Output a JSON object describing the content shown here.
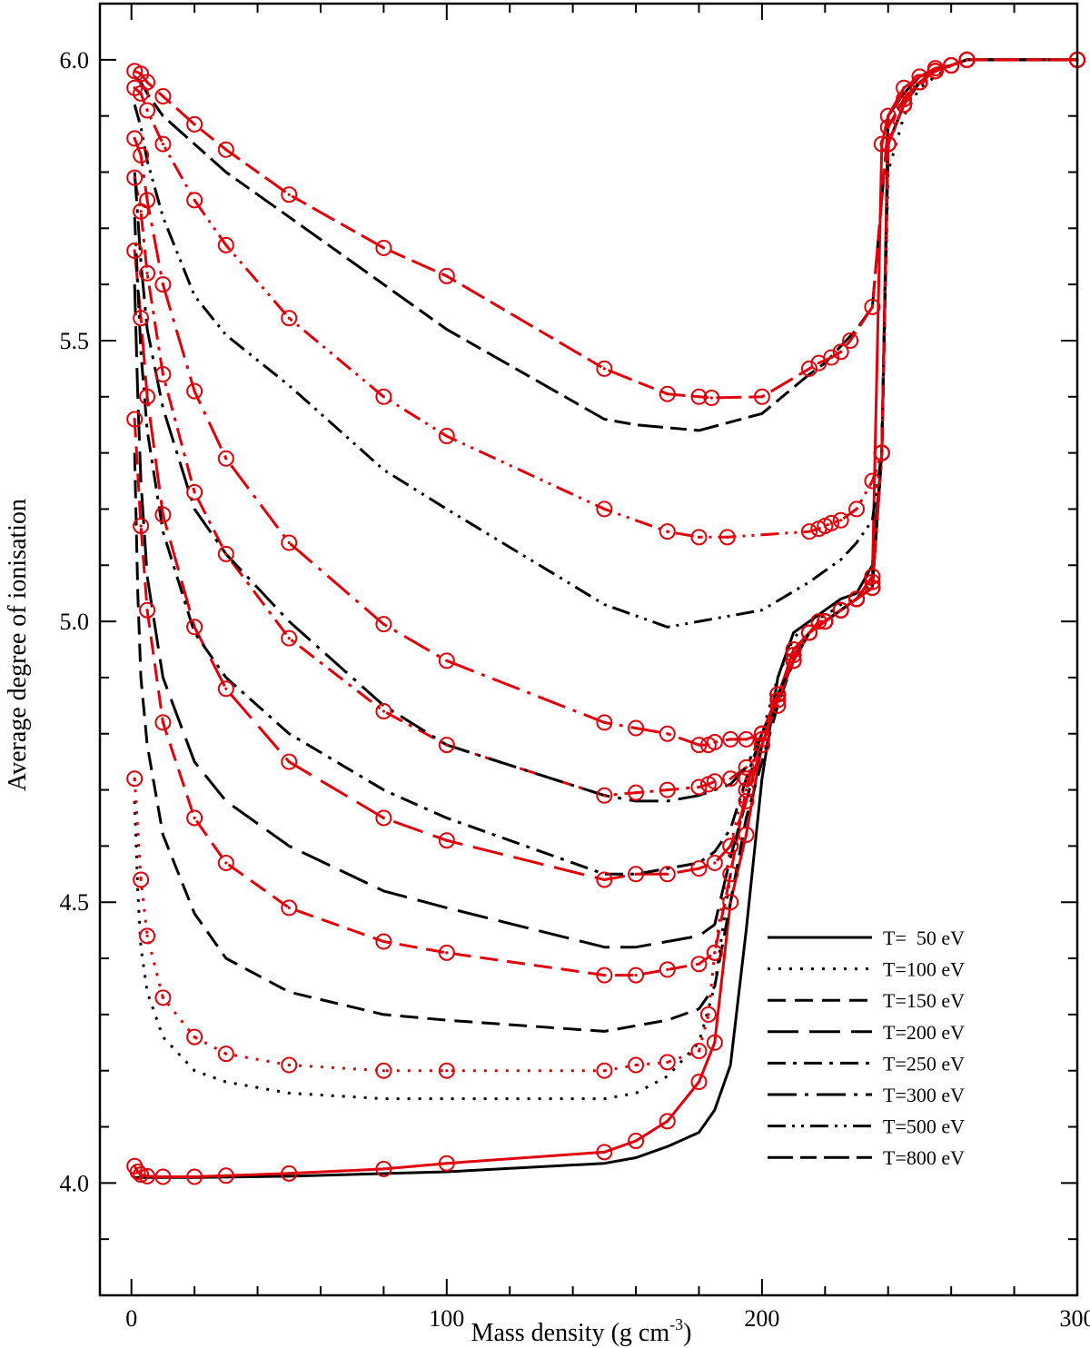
{
  "chart_data": {
    "type": "line",
    "title": "",
    "xlabel": "Mass density (g cm",
    "xlabel_sup": "-3",
    "xlabel_close": ")",
    "ylabel": "Average degree of ionisation",
    "xlim": [
      -10,
      300
    ],
    "ylim": [
      3.8,
      6.1
    ],
    "x_ticks": [
      0,
      100,
      200,
      300
    ],
    "x_tick_labels": [
      "0",
      "100",
      "200",
      "300"
    ],
    "x_minor_step": 20,
    "y_ticks": [
      4.0,
      4.5,
      5.0,
      5.5,
      6.0
    ],
    "y_tick_labels": [
      "4.0",
      "4.5",
      "5.0",
      "5.5",
      "6.0"
    ],
    "y_minor_step": 0.1,
    "legend_position": "bottom-right",
    "colors": {
      "model": "#000000",
      "reference": "#e0000b"
    },
    "legend": [
      {
        "label": "T=  50 eV",
        "style": "solid"
      },
      {
        "label": "T=100 eV",
        "style": "dotted"
      },
      {
        "label": "T=150 eV",
        "style": "dashed"
      },
      {
        "label": "T=200 eV",
        "style": "longdash"
      },
      {
        "label": "T=250 eV",
        "style": "dashdot"
      },
      {
        "label": "T=300 eV",
        "style": "longdashdot"
      },
      {
        "label": "T=500 eV",
        "style": "dashdotdot"
      },
      {
        "label": "T=800 eV",
        "style": "longdashdot2"
      }
    ],
    "series": [
      {
        "name": "T=50 eV",
        "color": "black",
        "style": "solid",
        "x": [
          1,
          3,
          5,
          10,
          20,
          50,
          100,
          150,
          160,
          170,
          180,
          185,
          190,
          195,
          200,
          205,
          210,
          215,
          220,
          225,
          230,
          235,
          238,
          240,
          245,
          250,
          255,
          260,
          265,
          300
        ],
        "y": [
          4.01,
          4.01,
          4.01,
          4.01,
          4.01,
          4.012,
          4.02,
          4.035,
          4.045,
          4.065,
          4.09,
          4.13,
          4.21,
          4.45,
          4.72,
          4.9,
          4.98,
          5.0,
          5.02,
          5.04,
          5.05,
          5.1,
          5.3,
          5.9,
          5.94,
          5.97,
          5.98,
          5.99,
          6.0,
          6.0
        ]
      },
      {
        "name": "T=50 eV",
        "color": "red",
        "style": "solid",
        "markers": true,
        "x": [
          1,
          2,
          3,
          5,
          10,
          20,
          30,
          50,
          80,
          100,
          150,
          160,
          170,
          180,
          185,
          190,
          195,
          200,
          210,
          215,
          218,
          220,
          225,
          230,
          235,
          238,
          240,
          245,
          250,
          255,
          260,
          265,
          300
        ],
        "y": [
          4.03,
          4.02,
          4.015,
          4.012,
          4.011,
          4.011,
          4.013,
          4.017,
          4.025,
          4.035,
          4.055,
          4.075,
          4.11,
          4.18,
          4.25,
          4.5,
          4.62,
          4.78,
          4.95,
          4.98,
          5.0,
          5.0,
          5.02,
          5.04,
          5.08,
          5.85,
          5.9,
          5.95,
          5.97,
          5.985,
          5.99,
          6.0,
          6.0
        ]
      },
      {
        "name": "T=100 eV",
        "color": "black",
        "style": "dotted",
        "x": [
          1,
          2,
          3,
          5,
          10,
          20,
          30,
          50,
          80,
          100,
          150,
          160,
          170,
          180,
          185,
          190,
          195,
          200,
          205,
          210,
          215,
          220,
          225,
          230,
          235,
          238,
          240,
          245,
          250,
          255,
          260,
          265,
          300
        ],
        "y": [
          4.68,
          4.52,
          4.42,
          4.34,
          4.26,
          4.2,
          4.18,
          4.16,
          4.15,
          4.15,
          4.15,
          4.16,
          4.19,
          4.25,
          4.35,
          4.55,
          4.7,
          4.8,
          4.9,
          4.97,
          5.0,
          5.01,
          5.03,
          5.04,
          5.07,
          5.3,
          5.8,
          5.9,
          5.95,
          5.97,
          5.99,
          6.0,
          6.0
        ]
      },
      {
        "name": "T=100 eV",
        "color": "red",
        "style": "dotted",
        "markers": true,
        "x": [
          1,
          3,
          5,
          10,
          20,
          30,
          50,
          80,
          100,
          150,
          160,
          170,
          180,
          183,
          185,
          190,
          195,
          200,
          205,
          210,
          215,
          220,
          225,
          230,
          235,
          238,
          240,
          245,
          250,
          255,
          260,
          265,
          300
        ],
        "y": [
          4.72,
          4.54,
          4.44,
          4.33,
          4.26,
          4.23,
          4.21,
          4.2,
          4.2,
          4.2,
          4.21,
          4.215,
          4.235,
          4.3,
          4.41,
          4.6,
          4.72,
          4.79,
          4.85,
          4.93,
          4.98,
          5.0,
          5.02,
          5.04,
          5.07,
          5.3,
          5.85,
          5.92,
          5.96,
          5.98,
          5.99,
          6.0,
          6.0
        ]
      },
      {
        "name": "T=150 eV",
        "color": "black",
        "style": "dashed",
        "x": [
          1,
          2,
          3,
          5,
          10,
          20,
          30,
          50,
          80,
          100,
          150,
          160,
          170,
          180,
          185,
          190,
          195,
          200,
          205,
          210,
          215,
          220,
          225,
          230,
          235,
          238,
          240,
          245,
          250,
          255,
          260,
          265,
          300
        ],
        "y": [
          5.3,
          5.05,
          4.9,
          4.78,
          4.62,
          4.48,
          4.4,
          4.34,
          4.3,
          4.29,
          4.27,
          4.28,
          4.29,
          4.31,
          4.35,
          4.5,
          4.65,
          4.75,
          4.85,
          4.93,
          4.98,
          5.0,
          5.02,
          5.04,
          5.06,
          5.3,
          5.85,
          5.92,
          5.96,
          5.98,
          5.99,
          6.0,
          6.0
        ]
      },
      {
        "name": "T=150 eV",
        "color": "red",
        "style": "dashed",
        "markers": true,
        "x": [
          1,
          3,
          5,
          10,
          20,
          30,
          50,
          80,
          100,
          150,
          160,
          170,
          180,
          185,
          190,
          195,
          200,
          205,
          210,
          215,
          220,
          225,
          230,
          235,
          238,
          240,
          245,
          250,
          255,
          260,
          265,
          300
        ],
        "y": [
          5.36,
          5.17,
          5.02,
          4.82,
          4.65,
          4.57,
          4.49,
          4.43,
          4.41,
          4.37,
          4.37,
          4.38,
          4.39,
          4.41,
          4.55,
          4.7,
          4.8,
          4.87,
          4.94,
          4.98,
          5.0,
          5.02,
          5.04,
          5.06,
          5.3,
          5.85,
          5.92,
          5.96,
          5.98,
          5.99,
          6.0,
          6.0
        ]
      },
      {
        "name": "T=200 eV",
        "color": "black",
        "style": "longdash",
        "x": [
          1,
          2,
          3,
          5,
          10,
          20,
          30,
          50,
          80,
          100,
          150,
          160,
          170,
          180,
          185,
          190,
          195,
          200,
          205,
          210,
          215,
          220,
          225,
          230,
          235,
          238,
          240,
          245,
          250,
          255,
          260,
          265,
          300
        ],
        "y": [
          5.6,
          5.4,
          5.25,
          5.08,
          4.9,
          4.75,
          4.68,
          4.6,
          4.52,
          4.49,
          4.42,
          4.42,
          4.43,
          4.44,
          4.46,
          4.58,
          4.68,
          4.78,
          4.86,
          4.93,
          4.98,
          5.0,
          5.02,
          5.04,
          5.06,
          5.3,
          5.85,
          5.92,
          5.96,
          5.98,
          5.99,
          6.0,
          6.0
        ]
      },
      {
        "name": "T=200 eV",
        "color": "red",
        "style": "longdash",
        "markers": true,
        "x": [
          1,
          3,
          5,
          10,
          20,
          30,
          50,
          80,
          100,
          150,
          160,
          170,
          180,
          185,
          190,
          195,
          200,
          205,
          210,
          215,
          220,
          225,
          230,
          235,
          238,
          240,
          245,
          250,
          255,
          260,
          265,
          300
        ],
        "y": [
          5.66,
          5.54,
          5.4,
          5.19,
          4.99,
          4.88,
          4.75,
          4.65,
          4.61,
          4.54,
          4.55,
          4.55,
          4.56,
          4.57,
          4.6,
          4.68,
          4.78,
          4.86,
          4.93,
          4.98,
          5.0,
          5.02,
          5.04,
          5.06,
          5.3,
          5.85,
          5.92,
          5.96,
          5.98,
          5.99,
          6.0,
          6.0
        ]
      },
      {
        "name": "T=250 eV",
        "color": "black",
        "style": "dashdot",
        "x": [
          1,
          2,
          3,
          5,
          10,
          20,
          30,
          50,
          80,
          100,
          150,
          160,
          170,
          180,
          185,
          190,
          195,
          200,
          205,
          210,
          215,
          220,
          225,
          230,
          235,
          238,
          240,
          245,
          250,
          255,
          260,
          265,
          300
        ],
        "y": [
          5.72,
          5.6,
          5.48,
          5.34,
          5.16,
          4.98,
          4.9,
          4.8,
          4.7,
          4.65,
          4.55,
          4.55,
          4.56,
          4.57,
          4.59,
          4.63,
          4.72,
          4.8,
          4.87,
          4.93,
          4.98,
          5.0,
          5.02,
          5.04,
          5.06,
          5.3,
          5.85,
          5.92,
          5.96,
          5.98,
          5.99,
          6.0,
          6.0
        ]
      },
      {
        "name": "T=250 eV",
        "color": "red",
        "style": "dashdot",
        "markers": true,
        "x": [
          1,
          3,
          5,
          10,
          20,
          30,
          50,
          80,
          100,
          150,
          160,
          170,
          180,
          183,
          185,
          190,
          195,
          200,
          205,
          210,
          215,
          220,
          225,
          230,
          235,
          238,
          240,
          245,
          250,
          255,
          260,
          265,
          300
        ],
        "y": [
          5.79,
          5.73,
          5.62,
          5.44,
          5.23,
          5.12,
          4.97,
          4.84,
          4.78,
          4.69,
          4.695,
          4.7,
          4.705,
          4.71,
          4.715,
          4.72,
          4.74,
          4.8,
          4.87,
          4.93,
          4.98,
          5.0,
          5.02,
          5.04,
          5.06,
          5.3,
          5.85,
          5.92,
          5.96,
          5.98,
          5.99,
          6.0,
          6.0
        ]
      },
      {
        "name": "T=300 eV",
        "color": "black",
        "style": "longdashdot",
        "x": [
          1,
          2,
          3,
          5,
          10,
          20,
          30,
          50,
          80,
          100,
          150,
          160,
          170,
          180,
          185,
          190,
          195,
          200,
          205,
          210,
          215,
          220,
          225,
          230,
          235,
          238,
          240,
          245,
          250,
          255,
          260,
          265,
          300
        ],
        "y": [
          5.8,
          5.72,
          5.64,
          5.52,
          5.38,
          5.2,
          5.12,
          5.0,
          4.85,
          4.78,
          4.69,
          4.68,
          4.68,
          4.69,
          4.7,
          4.71,
          4.74,
          4.8,
          4.87,
          4.93,
          4.98,
          5.0,
          5.02,
          5.04,
          5.06,
          5.3,
          5.85,
          5.92,
          5.96,
          5.98,
          5.99,
          6.0,
          6.0
        ]
      },
      {
        "name": "T=300 eV",
        "color": "red",
        "style": "longdashdot",
        "markers": true,
        "x": [
          1,
          3,
          5,
          10,
          20,
          30,
          50,
          80,
          100,
          150,
          160,
          170,
          180,
          183,
          185,
          190,
          195,
          200,
          205,
          210,
          215,
          220,
          225,
          230,
          235,
          238,
          240,
          245,
          250,
          255,
          260,
          265,
          300
        ],
        "y": [
          5.86,
          5.83,
          5.75,
          5.6,
          5.41,
          5.29,
          5.14,
          4.995,
          4.93,
          4.82,
          4.81,
          4.8,
          4.78,
          4.78,
          4.785,
          4.79,
          4.79,
          4.8,
          4.87,
          4.93,
          4.98,
          5.0,
          5.02,
          5.04,
          5.06,
          5.3,
          5.85,
          5.92,
          5.96,
          5.98,
          5.99,
          6.0,
          6.0
        ]
      },
      {
        "name": "T=500 eV",
        "color": "black",
        "style": "dashdotdot",
        "x": [
          1,
          3,
          5,
          10,
          20,
          30,
          50,
          80,
          100,
          150,
          170,
          180,
          200,
          215,
          220,
          225,
          230,
          235,
          238,
          240,
          245,
          250,
          255,
          260,
          265,
          300
        ],
        "y": [
          5.92,
          5.88,
          5.82,
          5.72,
          5.58,
          5.51,
          5.42,
          5.27,
          5.2,
          5.03,
          4.99,
          5.0,
          5.02,
          5.07,
          5.09,
          5.11,
          5.14,
          5.18,
          5.3,
          5.85,
          5.92,
          5.96,
          5.98,
          5.99,
          6.0,
          6.0
        ]
      },
      {
        "name": "T=500 eV",
        "color": "red",
        "style": "dashdotdot",
        "markers": true,
        "x": [
          1,
          3,
          5,
          10,
          20,
          30,
          50,
          80,
          100,
          150,
          170,
          180,
          189,
          215,
          218,
          220,
          222,
          225,
          230,
          235,
          238,
          240,
          245,
          250,
          255,
          260,
          265,
          300
        ],
        "y": [
          5.95,
          5.94,
          5.91,
          5.85,
          5.75,
          5.67,
          5.54,
          5.4,
          5.33,
          5.2,
          5.16,
          5.15,
          5.15,
          5.16,
          5.165,
          5.17,
          5.175,
          5.18,
          5.2,
          5.25,
          5.3,
          5.85,
          5.92,
          5.96,
          5.98,
          5.99,
          6.0,
          6.0
        ]
      },
      {
        "name": "T=800 eV",
        "color": "black",
        "style": "longdashdot2",
        "x": [
          1,
          3,
          5,
          10,
          20,
          30,
          50,
          80,
          100,
          150,
          160,
          180,
          200,
          215,
          220,
          225,
          230,
          235,
          240,
          245,
          250,
          255,
          260,
          265,
          300
        ],
        "y": [
          5.97,
          5.96,
          5.94,
          5.9,
          5.85,
          5.8,
          5.72,
          5.6,
          5.52,
          5.36,
          5.35,
          5.34,
          5.37,
          5.44,
          5.46,
          5.49,
          5.52,
          5.56,
          5.88,
          5.93,
          5.96,
          5.98,
          5.99,
          6.0,
          6.0
        ]
      },
      {
        "name": "T=800 eV",
        "color": "red",
        "style": "longdashdot2",
        "markers": true,
        "x": [
          1,
          3,
          5,
          10,
          20,
          30,
          50,
          80,
          100,
          150,
          170,
          180,
          184,
          200,
          215,
          218,
          222,
          225,
          228,
          235,
          240,
          245,
          250,
          255,
          260,
          265,
          300
        ],
        "y": [
          5.98,
          5.975,
          5.96,
          5.935,
          5.885,
          5.84,
          5.76,
          5.665,
          5.615,
          5.45,
          5.405,
          5.4,
          5.398,
          5.4,
          5.45,
          5.46,
          5.47,
          5.48,
          5.5,
          5.56,
          5.88,
          5.93,
          5.96,
          5.98,
          5.99,
          6.0,
          6.0
        ]
      }
    ]
  }
}
